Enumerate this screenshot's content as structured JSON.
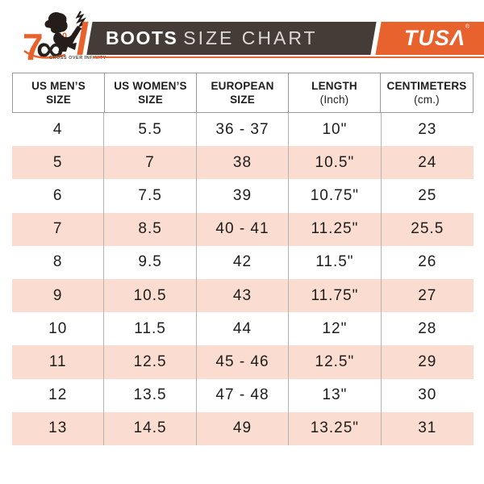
{
  "logo": {
    "number": "7",
    "zero_superscript": "0",
    "infinity_glyph": "∞",
    "tagline": "CROSS OVER INFINITY"
  },
  "title_bar": {
    "title_bold": "BOOTS",
    "title_light": "SIZE CHART"
  },
  "brand": {
    "name": "TUSA",
    "display": "TUSΛ",
    "registered": "®"
  },
  "colors": {
    "orange": "#E8622D",
    "bar_brown": "#453C38",
    "row_pink": "#FADCD0",
    "text_dark": "#1D1D1B",
    "border_gray": "#9A9A9A"
  },
  "table": {
    "columns": [
      {
        "line1": "US MEN’S",
        "line2": "SIZE",
        "sub": false
      },
      {
        "line1": "US WOMEN’S",
        "line2": "SIZE",
        "sub": false
      },
      {
        "line1": "EUROPEAN",
        "line2": "SIZE",
        "sub": false
      },
      {
        "line1": "LENGTH",
        "line2": "(Inch)",
        "sub": true
      },
      {
        "line1": "CENTIMETERS",
        "line2": "(cm.)",
        "sub": true
      }
    ],
    "rows": [
      [
        "4",
        "5.5",
        "36 - 37",
        "10\"",
        "23"
      ],
      [
        "5",
        "7",
        "38",
        "10.5\"",
        "24"
      ],
      [
        "6",
        "7.5",
        "39",
        "10.75\"",
        "25"
      ],
      [
        "7",
        "8.5",
        "40 - 41",
        "11.25\"",
        "25.5"
      ],
      [
        "8",
        "9.5",
        "42",
        "11.5\"",
        "26"
      ],
      [
        "9",
        "10.5",
        "43",
        "11.75\"",
        "27"
      ],
      [
        "10",
        "11.5",
        "44",
        "12\"",
        "28"
      ],
      [
        "11",
        "12.5",
        "45 - 46",
        "12.5\"",
        "29"
      ],
      [
        "12",
        "13.5",
        "47 - 48",
        "13\"",
        "30"
      ],
      [
        "13",
        "14.5",
        "49",
        "13.25\"",
        "31"
      ]
    ]
  }
}
